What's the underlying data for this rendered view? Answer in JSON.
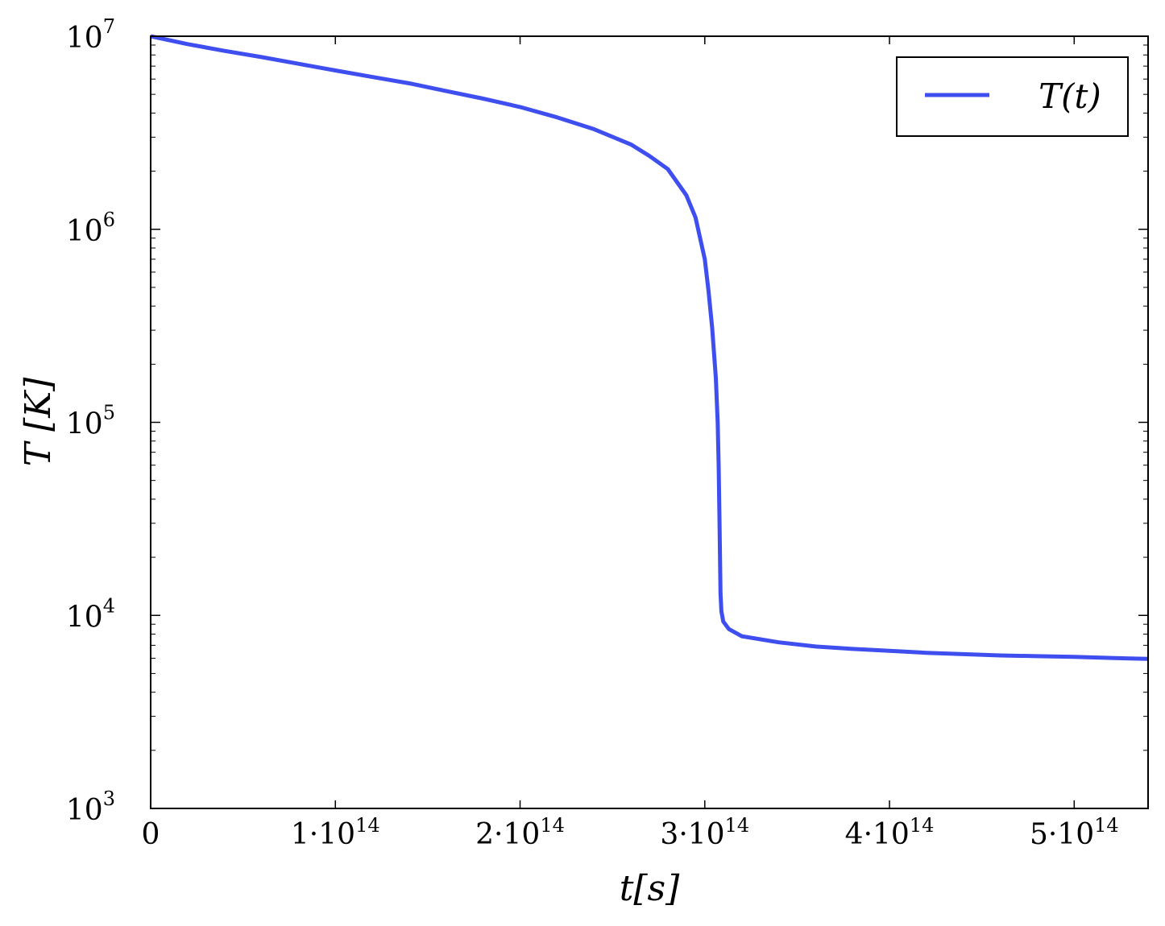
{
  "chart_data": {
    "type": "line",
    "xlabel": "t[s]",
    "ylabel": "T [K]",
    "xlim": [
      0,
      540000000000000.0
    ],
    "ylim": [
      1000,
      10000000
    ],
    "yscale": "log",
    "grid": false,
    "legend_position": "top-right",
    "x_ticks": [
      {
        "value": 0,
        "label": "0"
      },
      {
        "value": 100000000000000.0,
        "label": "1·10",
        "exp": "14"
      },
      {
        "value": 200000000000000.0,
        "label": "2·10",
        "exp": "14"
      },
      {
        "value": 300000000000000.0,
        "label": "3·10",
        "exp": "14"
      },
      {
        "value": 400000000000000.0,
        "label": "4·10",
        "exp": "14"
      },
      {
        "value": 500000000000000.0,
        "label": "5·10",
        "exp": "14"
      }
    ],
    "y_ticks": [
      {
        "value": 1000,
        "label": "10",
        "exp": "3"
      },
      {
        "value": 10000,
        "label": "10",
        "exp": "4"
      },
      {
        "value": 100000,
        "label": "10",
        "exp": "5"
      },
      {
        "value": 1000000,
        "label": "10",
        "exp": "6"
      },
      {
        "value": 10000000,
        "label": "10",
        "exp": "7"
      }
    ],
    "series": [
      {
        "name": "T(t)",
        "color": "#3f4fef",
        "x": [
          0,
          20000000000000.0,
          40000000000000.0,
          60000000000000.0,
          80000000000000.0,
          100000000000000.0,
          120000000000000.0,
          140000000000000.0,
          160000000000000.0,
          180000000000000.0,
          200000000000000.0,
          220000000000000.0,
          240000000000000.0,
          260000000000000.0,
          270000000000000.0,
          280000000000000.0,
          290000000000000.0,
          295000000000000.0,
          300000000000000.0,
          302000000000000.0,
          304000000000000.0,
          306000000000000.0,
          307000000000000.0,
          307500000000000.0,
          308000000000000.0,
          308500000000000.0,
          309000000000000.0,
          310000000000000.0,
          313000000000000.0,
          320000000000000.0,
          340000000000000.0,
          360000000000000.0,
          380000000000000.0,
          400000000000000.0,
          420000000000000.0,
          440000000000000.0,
          460000000000000.0,
          480000000000000.0,
          500000000000000.0,
          520000000000000.0,
          540000000000000.0
        ],
        "y": [
          10000000,
          9100000,
          8400000,
          7800000,
          7200000,
          6650000,
          6150000,
          5700000,
          5200000,
          4750000,
          4300000,
          3800000,
          3300000,
          2750000,
          2400000,
          2050000,
          1500000,
          1150000,
          700000,
          480000,
          310000,
          170000,
          100000,
          60000,
          30000,
          13000,
          10500,
          9300,
          8500,
          7800,
          7250,
          6900,
          6700,
          6550,
          6400,
          6300,
          6200,
          6150,
          6100,
          6020,
          5950
        ]
      }
    ]
  }
}
